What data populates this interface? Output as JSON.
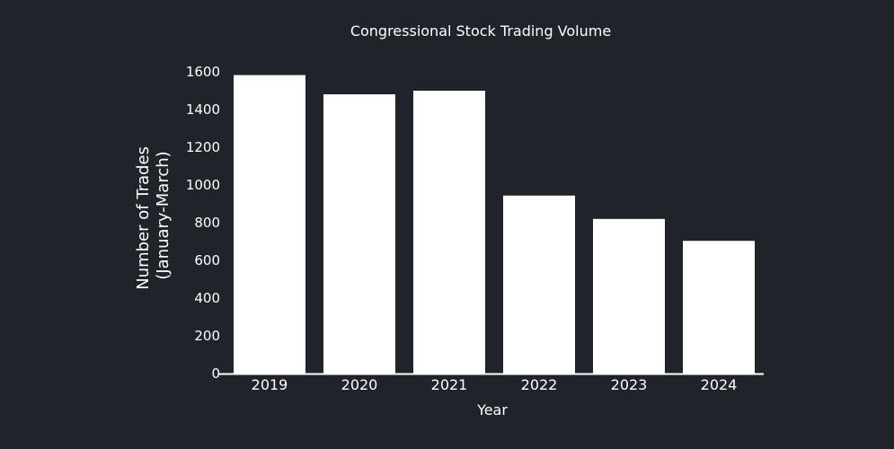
{
  "chart_data": {
    "type": "bar",
    "title": "Congressional Stock Trading Volume",
    "xlabel": "Year",
    "ylabel_lines": [
      "Number of Trades",
      "(January-March)"
    ],
    "categories": [
      "2019",
      "2020",
      "2021",
      "2022",
      "2023",
      "2024"
    ],
    "values": [
      1583,
      1481,
      1500,
      944,
      820,
      704
    ],
    "ylim": [
      0,
      1600
    ],
    "yticks": [
      0,
      200,
      400,
      600,
      800,
      1000,
      1200,
      1400,
      1600
    ],
    "grid": false,
    "bar_color": "#ffffff",
    "background_color": "#20232a",
    "axis_color": "#ffffff"
  }
}
